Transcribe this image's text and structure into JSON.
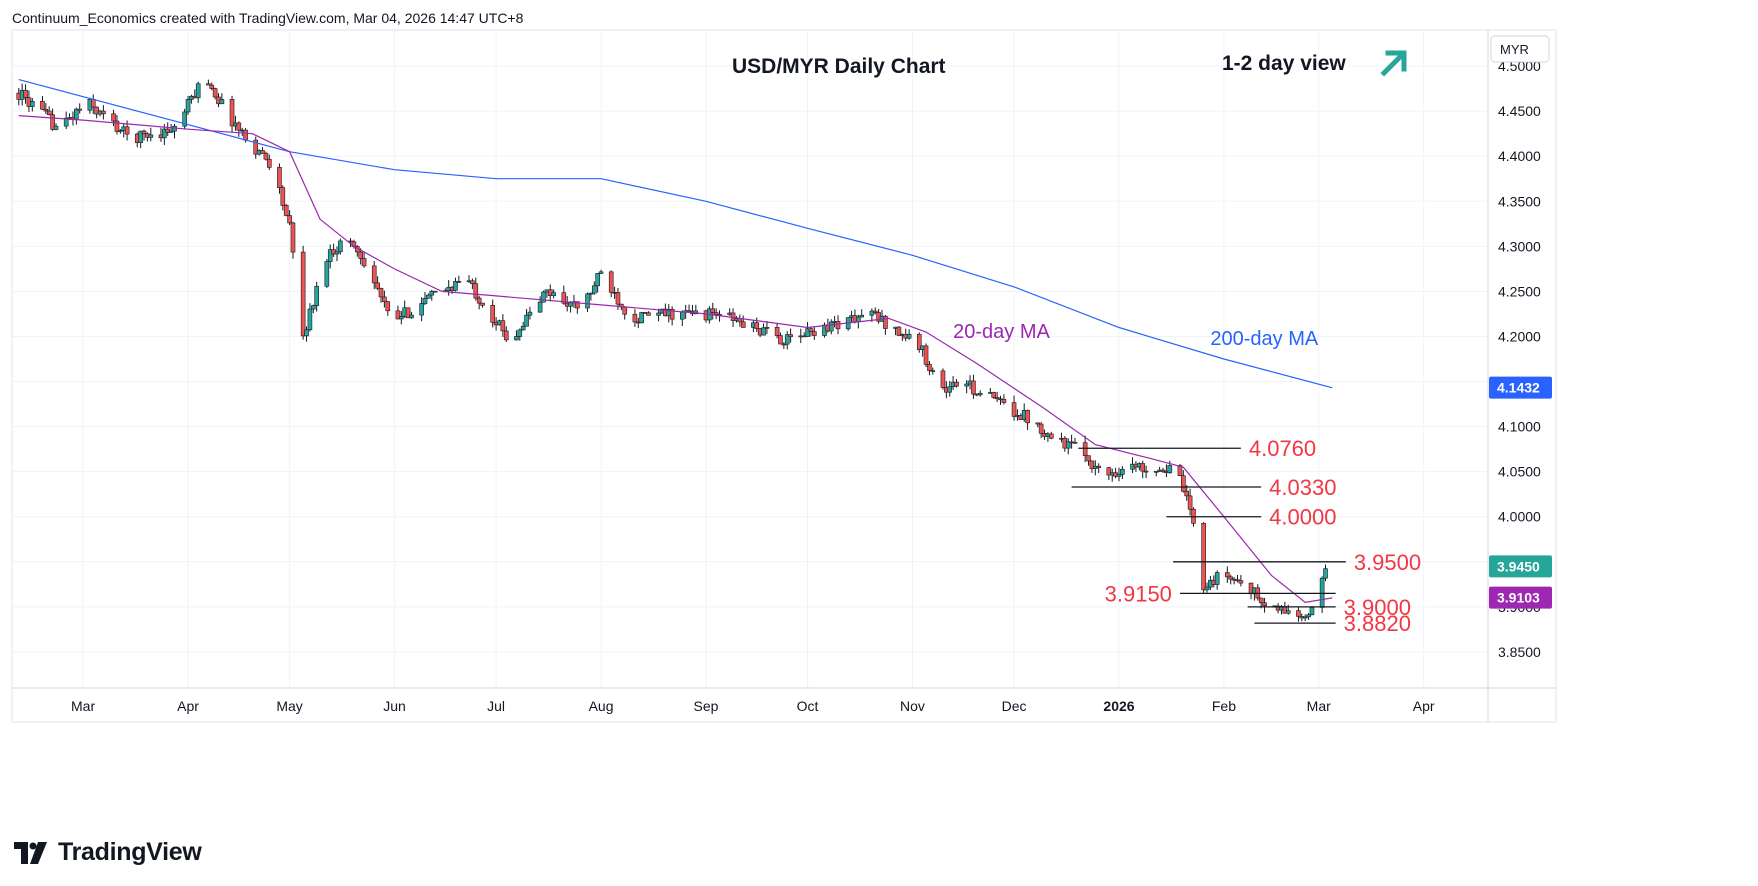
{
  "header": {
    "text": "Continuum_Economics created with TradingView.com, Mar 04, 2026 14:47 UTC+8"
  },
  "brand": {
    "name": "TradingView",
    "icon": "tradingview-logo-icon"
  },
  "chart_data": {
    "type": "candlestick",
    "title": "USD/MYR Daily Chart",
    "view_text": "1-2 day view",
    "view_icon": "arrow-up-right-icon",
    "currency": "MYR",
    "ylim": [
      3.81,
      4.54
    ],
    "y_ticks": [
      "4.5000",
      "4.4500",
      "4.4000",
      "4.3500",
      "4.3000",
      "4.2500",
      "4.2000",
      "4.1500",
      "4.1000",
      "4.0500",
      "4.0000",
      "3.9500",
      "3.9000",
      "3.8500"
    ],
    "x_labels": [
      "Mar",
      "Apr",
      "May",
      "Jun",
      "Jul",
      "Aug",
      "Sep",
      "Oct",
      "Nov",
      "Dec",
      "2026",
      "Feb",
      "Mar",
      "Apr"
    ],
    "ma_labels": {
      "ma20": "20-day MA",
      "ma200": "200-day MA"
    },
    "price_badges": [
      {
        "label": "4.1432",
        "value": 4.1432,
        "color": "#2962ff"
      },
      {
        "label": "3.9450",
        "value": 3.945,
        "color": "#26a69a"
      },
      {
        "label": "3.9103",
        "value": 3.9103,
        "color": "#9c27b0"
      }
    ],
    "levels": [
      {
        "label": "4.0760",
        "value": 4.076,
        "from": "2025-12-20",
        "to": "2026-02-06",
        "side": "right"
      },
      {
        "label": "4.0330",
        "value": 4.033,
        "from": "2025-12-18",
        "to": "2026-02-12",
        "side": "right"
      },
      {
        "label": "4.0000",
        "value": 4.0,
        "from": "2026-01-15",
        "to": "2026-02-12",
        "side": "right"
      },
      {
        "label": "3.9500",
        "value": 3.95,
        "from": "2026-01-17",
        "to": "2026-03-09",
        "side": "right"
      },
      {
        "label": "3.9150",
        "value": 3.915,
        "from": "2026-01-19",
        "to": "2026-03-06",
        "side": "left"
      },
      {
        "label": "3.9000",
        "value": 3.9,
        "from": "2026-02-08",
        "to": "2026-03-06",
        "side": "right"
      },
      {
        "label": "3.8820",
        "value": 3.882,
        "from": "2026-02-10",
        "to": "2026-03-06",
        "side": "right"
      }
    ],
    "anchors": [
      [
        "2025-02-10",
        4.47
      ],
      [
        "2025-02-22",
        4.43
      ],
      [
        "2025-03-02",
        4.46
      ],
      [
        "2025-03-15",
        4.42
      ],
      [
        "2025-03-28",
        4.43
      ],
      [
        "2025-04-06",
        4.49
      ],
      [
        "2025-04-12",
        4.45
      ],
      [
        "2025-04-18",
        4.42
      ],
      [
        "2025-04-26",
        4.39
      ],
      [
        "2025-05-01",
        4.32
      ],
      [
        "2025-05-05",
        4.2
      ],
      [
        "2025-05-12",
        4.29
      ],
      [
        "2025-05-18",
        4.31
      ],
      [
        "2025-05-24",
        4.28
      ],
      [
        "2025-05-31",
        4.215
      ],
      [
        "2025-06-10",
        4.24
      ],
      [
        "2025-06-22",
        4.265
      ],
      [
        "2025-07-05",
        4.195
      ],
      [
        "2025-07-16",
        4.25
      ],
      [
        "2025-07-26",
        4.23
      ],
      [
        "2025-08-01",
        4.27
      ],
      [
        "2025-08-10",
        4.22
      ],
      [
        "2025-08-20",
        4.225
      ],
      [
        "2025-09-05",
        4.225
      ],
      [
        "2025-09-25",
        4.195
      ],
      [
        "2025-10-05",
        4.21
      ],
      [
        "2025-10-20",
        4.225
      ],
      [
        "2025-10-28",
        4.205
      ],
      [
        "2025-11-03",
        4.19
      ],
      [
        "2025-11-10",
        4.14
      ],
      [
        "2025-11-15",
        4.15
      ],
      [
        "2025-11-25",
        4.13
      ],
      [
        "2025-12-05",
        4.11
      ],
      [
        "2025-12-12",
        4.09
      ],
      [
        "2025-12-22",
        4.07
      ],
      [
        "2025-12-27",
        4.045
      ],
      [
        "2026-01-03",
        4.055
      ],
      [
        "2026-01-12",
        4.055
      ],
      [
        "2026-01-18",
        4.05
      ],
      [
        "2026-01-20",
        4.03
      ],
      [
        "2026-01-23",
        3.99
      ],
      [
        "2026-01-26",
        3.925
      ],
      [
        "2026-02-01",
        3.935
      ],
      [
        "2026-02-08",
        3.925
      ],
      [
        "2026-02-13",
        3.9
      ],
      [
        "2026-02-20",
        3.895
      ],
      [
        "2026-02-26",
        3.885
      ],
      [
        "2026-03-03",
        3.945
      ]
    ],
    "ma20": [
      [
        "2025-02-10",
        4.445
      ],
      [
        "2025-03-01",
        4.44
      ],
      [
        "2025-04-01",
        4.43
      ],
      [
        "2025-04-20",
        4.425
      ],
      [
        "2025-05-01",
        4.405
      ],
      [
        "2025-05-10",
        4.33
      ],
      [
        "2025-05-20",
        4.3
      ],
      [
        "2025-06-01",
        4.275
      ],
      [
        "2025-06-15",
        4.25
      ],
      [
        "2025-07-01",
        4.245
      ],
      [
        "2025-08-01",
        4.235
      ],
      [
        "2025-09-01",
        4.225
      ],
      [
        "2025-10-01",
        4.21
      ],
      [
        "2025-10-25",
        4.22
      ],
      [
        "2025-11-05",
        4.205
      ],
      [
        "2025-11-20",
        4.17
      ],
      [
        "2025-12-10",
        4.12
      ],
      [
        "2025-12-25",
        4.08
      ],
      [
        "2026-01-10",
        4.065
      ],
      [
        "2026-01-20",
        4.055
      ],
      [
        "2026-02-01",
        4.0
      ],
      [
        "2026-02-15",
        3.935
      ],
      [
        "2026-02-25",
        3.905
      ],
      [
        "2026-03-05",
        3.91
      ]
    ],
    "ma200": [
      [
        "2025-02-10",
        4.485
      ],
      [
        "2025-04-01",
        4.435
      ],
      [
        "2025-05-01",
        4.405
      ],
      [
        "2025-06-01",
        4.385
      ],
      [
        "2025-07-01",
        4.375
      ],
      [
        "2025-08-01",
        4.375
      ],
      [
        "2025-09-01",
        4.35
      ],
      [
        "2025-10-01",
        4.32
      ],
      [
        "2025-11-01",
        4.29
      ],
      [
        "2025-12-01",
        4.255
      ],
      [
        "2026-01-01",
        4.21
      ],
      [
        "2026-02-01",
        4.175
      ],
      [
        "2026-03-05",
        4.143
      ]
    ]
  }
}
